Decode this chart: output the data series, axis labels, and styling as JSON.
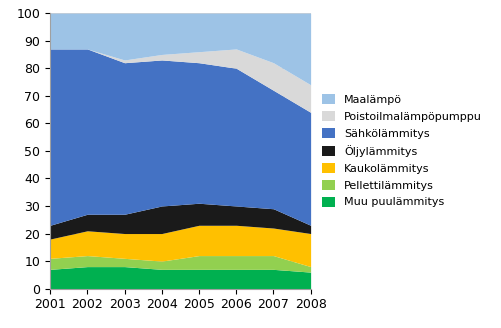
{
  "years": [
    2001,
    2002,
    2003,
    2004,
    2005,
    2006,
    2007,
    2008
  ],
  "series": {
    "Muu puulämmitys": [
      7,
      8,
      8,
      7,
      7,
      7,
      7,
      6
    ],
    "Pellettilämmitys": [
      4,
      4,
      3,
      3,
      5,
      5,
      5,
      2
    ],
    "Kaukolämmitys": [
      7,
      9,
      9,
      10,
      11,
      11,
      10,
      12
    ],
    "Öljylämmitys": [
      5,
      6,
      7,
      10,
      8,
      7,
      7,
      3
    ],
    "Sähkölämmitys": [
      64,
      60,
      55,
      53,
      51,
      50,
      43,
      41
    ],
    "Poistoilmalämpöpumppu": [
      0,
      0,
      1,
      2,
      4,
      7,
      10,
      10
    ],
    "Maalämpö": [
      13,
      13,
      17,
      15,
      14,
      13,
      18,
      26
    ]
  },
  "colors": {
    "Muu puulämmitys": "#00b050",
    "Pellettilämmitys": "#92d050",
    "Kaukolämmitys": "#ffc000",
    "Öljylämmitys": "#1a1a1a",
    "Sähkölämmitys": "#4472c4",
    "Poistoilmalämpöpumppu": "#d9d9d9",
    "Maalämpö": "#9dc3e6"
  },
  "legend_order": [
    "Maalämpö",
    "Poistoilmalämpöpumppu",
    "Sähkölämmitys",
    "Öljylämmitys",
    "Kaukolämmitys",
    "Pellettilämmitys",
    "Muu puulämmitys"
  ],
  "stack_order": [
    "Muu puulämmitys",
    "Pellettilämmitys",
    "Kaukolämmitys",
    "Öljylämmitys",
    "Sähkölämmitys",
    "Poistoilmalämpöpumppu",
    "Maalämpö"
  ],
  "ylim": [
    0,
    100
  ],
  "yticks": [
    0,
    10,
    20,
    30,
    40,
    50,
    60,
    70,
    80,
    90,
    100
  ],
  "background_color": "#ffffff",
  "plot_bg_color": "#ffffff",
  "grid_color": "#c0c0c0",
  "font_size": 9
}
